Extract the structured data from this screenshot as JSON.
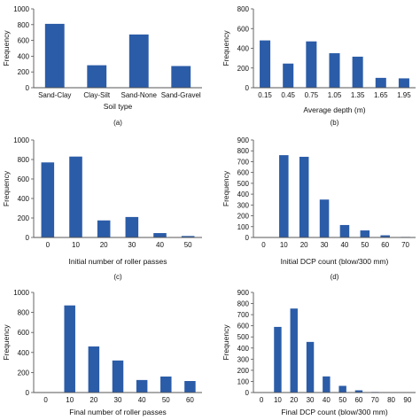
{
  "chart_data": [
    {
      "type": "bar",
      "panel_label": "(a)",
      "xlabel": "Soil type",
      "ylabel": "Frequency",
      "ylim": [
        0,
        1000
      ],
      "yticks": [
        "0",
        "200",
        "400",
        "600",
        "800",
        "1000"
      ],
      "categories": [
        "Sand-Clay",
        "Clay-Silt",
        "Sand-None",
        "Sand-Gravel"
      ],
      "values": [
        810,
        285,
        675,
        275
      ]
    },
    {
      "type": "bar",
      "panel_label": "(b)",
      "xlabel": "Average depth (m)",
      "ylabel": "Frequency",
      "ylim": [
        0,
        800
      ],
      "yticks": [
        "0",
        "200",
        "400",
        "600",
        "800"
      ],
      "categories": [
        "0.15",
        "0.45",
        "0.75",
        "1.05",
        "1.35",
        "1.65",
        "1.95"
      ],
      "values": [
        480,
        245,
        470,
        350,
        315,
        100,
        95
      ]
    },
    {
      "type": "bar",
      "panel_label": "(c)",
      "xlabel": "Initial number of roller passes",
      "ylabel": "Frequency",
      "ylim": [
        0,
        1000
      ],
      "yticks": [
        "0",
        "200",
        "400",
        "600",
        "800",
        "1000"
      ],
      "categories": [
        "0",
        "10",
        "20",
        "30",
        "40",
        "50"
      ],
      "values": [
        770,
        830,
        175,
        210,
        45,
        15
      ]
    },
    {
      "type": "bar",
      "panel_label": "(d)",
      "xlabel": "Initial DCP count (blow/300 mm)",
      "ylabel": "Frequency",
      "ylim": [
        0,
        900
      ],
      "yticks": [
        "0",
        "100",
        "200",
        "300",
        "400",
        "500",
        "600",
        "700",
        "800",
        "900"
      ],
      "categories": [
        "0",
        "10",
        "20",
        "30",
        "40",
        "50",
        "60",
        "70"
      ],
      "values": [
        0,
        760,
        745,
        350,
        115,
        65,
        20,
        5
      ]
    },
    {
      "type": "bar",
      "panel_label": "",
      "xlabel": "Final number of roller passes",
      "ylabel": "Frequency",
      "ylim": [
        0,
        1000
      ],
      "yticks": [
        "0",
        "200",
        "400",
        "600",
        "800",
        "1000"
      ],
      "categories": [
        "0",
        "10",
        "20",
        "30",
        "40",
        "50",
        "60"
      ],
      "values": [
        0,
        870,
        460,
        320,
        125,
        160,
        115
      ]
    },
    {
      "type": "bar",
      "panel_label": "",
      "xlabel": "Final DCP count (blow/300 mm)",
      "ylabel": "Frequency",
      "ylim": [
        0,
        900
      ],
      "yticks": [
        "0",
        "100",
        "200",
        "300",
        "400",
        "500",
        "600",
        "700",
        "800",
        "900"
      ],
      "categories": [
        "0",
        "10",
        "20",
        "30",
        "40",
        "50",
        "60",
        "70",
        "80",
        "90"
      ],
      "values": [
        0,
        590,
        755,
        455,
        145,
        60,
        20,
        5,
        0,
        0
      ]
    }
  ]
}
